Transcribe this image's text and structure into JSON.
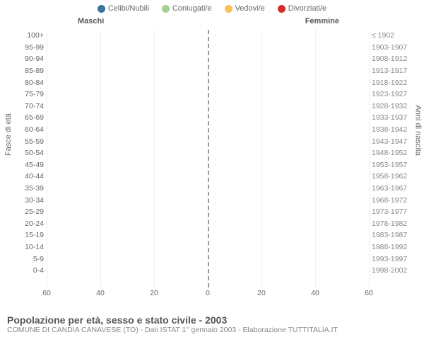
{
  "type": "population-pyramid-stacked",
  "legend": [
    {
      "label": "Celibi/Nubili",
      "color": "#39749c"
    },
    {
      "label": "Coniugati/e",
      "color": "#a6cf93"
    },
    {
      "label": "Vedovi/e",
      "color": "#f6c159"
    },
    {
      "label": "Divorziati/e",
      "color": "#d02f2c"
    }
  ],
  "columns": {
    "male": "Maschi",
    "female": "Femmine"
  },
  "y_title_left": "Fasce di età",
  "y_title_right": "Anni di nascita",
  "x_ticks": [
    60,
    40,
    20,
    0,
    20,
    40,
    60
  ],
  "x_max": 60,
  "rows": [
    {
      "age": "100+",
      "birth": "≤ 1902",
      "m": [
        0,
        0,
        0,
        0
      ],
      "f": [
        0,
        0,
        0,
        0
      ]
    },
    {
      "age": "95-99",
      "birth": "1903-1907",
      "m": [
        0,
        0,
        0,
        0
      ],
      "f": [
        0,
        0,
        2,
        0
      ]
    },
    {
      "age": "90-94",
      "birth": "1908-1912",
      "m": [
        1,
        0,
        1,
        0
      ],
      "f": [
        1,
        0,
        6,
        0
      ]
    },
    {
      "age": "85-89",
      "birth": "1913-1917",
      "m": [
        1,
        3,
        1,
        0
      ],
      "f": [
        1,
        1,
        11,
        0
      ]
    },
    {
      "age": "80-84",
      "birth": "1918-1922",
      "m": [
        2,
        10,
        3,
        0
      ],
      "f": [
        1,
        5,
        17,
        0
      ]
    },
    {
      "age": "75-79",
      "birth": "1923-1927",
      "m": [
        2,
        22,
        3,
        0
      ],
      "f": [
        1,
        13,
        30,
        0
      ]
    },
    {
      "age": "70-74",
      "birth": "1928-1932",
      "m": [
        1,
        28,
        2,
        0
      ],
      "f": [
        2,
        24,
        17,
        0
      ]
    },
    {
      "age": "65-69",
      "birth": "1933-1937",
      "m": [
        3,
        35,
        2,
        4
      ],
      "f": [
        3,
        34,
        12,
        1
      ]
    },
    {
      "age": "60-64",
      "birth": "1938-1942",
      "m": [
        2,
        34,
        1,
        2
      ],
      "f": [
        3,
        42,
        8,
        2
      ]
    },
    {
      "age": "55-59",
      "birth": "1943-1947",
      "m": [
        5,
        36,
        1,
        5
      ],
      "f": [
        3,
        31,
        4,
        0
      ]
    },
    {
      "age": "50-54",
      "birth": "1948-1952",
      "m": [
        5,
        40,
        1,
        2
      ],
      "f": [
        3,
        46,
        2,
        6
      ]
    },
    {
      "age": "45-49",
      "birth": "1953-1957",
      "m": [
        5,
        27,
        0,
        1
      ],
      "f": [
        4,
        34,
        1,
        0
      ]
    },
    {
      "age": "40-44",
      "birth": "1958-1962",
      "m": [
        10,
        30,
        0,
        2
      ],
      "f": [
        8,
        38,
        1,
        2
      ]
    },
    {
      "age": "35-39",
      "birth": "1963-1967",
      "m": [
        16,
        34,
        0,
        3
      ],
      "f": [
        10,
        40,
        1,
        2
      ]
    },
    {
      "age": "30-34",
      "birth": "1968-1972",
      "m": [
        24,
        22,
        0,
        0
      ],
      "f": [
        16,
        33,
        0,
        3
      ]
    },
    {
      "age": "25-29",
      "birth": "1973-1977",
      "m": [
        40,
        8,
        0,
        0
      ],
      "f": [
        21,
        14,
        0,
        0
      ]
    },
    {
      "age": "20-24",
      "birth": "1978-1982",
      "m": [
        27,
        1,
        0,
        0
      ],
      "f": [
        24,
        3,
        0,
        0
      ]
    },
    {
      "age": "15-19",
      "birth": "1983-1987",
      "m": [
        30,
        0,
        0,
        0
      ],
      "f": [
        20,
        0,
        0,
        0
      ]
    },
    {
      "age": "10-14",
      "birth": "1988-1992",
      "m": [
        24,
        0,
        0,
        0
      ],
      "f": [
        32,
        0,
        0,
        0
      ]
    },
    {
      "age": "5-9",
      "birth": "1993-1997",
      "m": [
        23,
        0,
        0,
        0
      ],
      "f": [
        21,
        0,
        0,
        0
      ]
    },
    {
      "age": "0-4",
      "birth": "1998-2002",
      "m": [
        26,
        0,
        0,
        0
      ],
      "f": [
        17,
        0,
        0,
        0
      ]
    }
  ],
  "grid_color": "#eeeeee",
  "center_line_color": "#999999",
  "background": "#ffffff",
  "footer_title": "Popolazione per età, sesso e stato civile - 2003",
  "footer_sub": "COMUNE DI CANDIA CANAVESE (TO) - Dati ISTAT 1° gennaio 2003 - Elaborazione TUTTITALIA.IT"
}
